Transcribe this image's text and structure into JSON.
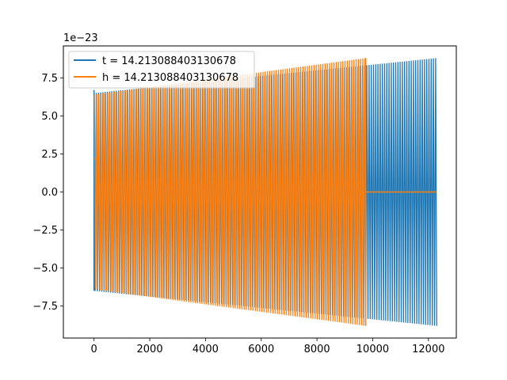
{
  "chart_data": {
    "type": "line",
    "title": "",
    "xlabel": "",
    "ylabel": "",
    "y_offset_label": "1e−23",
    "xlim": [
      -1100,
      13000
    ],
    "ylim": [
      -9.6,
      9.6
    ],
    "xticks": [
      0,
      2000,
      4000,
      6000,
      8000,
      10000,
      12000
    ],
    "yticks": [
      -7.5,
      -5.0,
      -2.5,
      0.0,
      2.5,
      5.0,
      7.5
    ],
    "xtick_labels": [
      "0",
      "2000",
      "4000",
      "6000",
      "8000",
      "10000",
      "12000"
    ],
    "ytick_labels": [
      "−7.5",
      "−5.0",
      "−2.5",
      "0.0",
      "2.5",
      "5.0",
      "7.5"
    ],
    "grid": false,
    "legend_position": "top-left",
    "series": [
      {
        "name": "t = 14.213088403130678",
        "color": "#1f77b4",
        "style": "dense-oscillation",
        "x_range": [
          0,
          12300
        ],
        "start_amplitude": 6.5,
        "end_amplitude": 8.8,
        "first_spike": 6.7
      },
      {
        "name": "h = 14.213088403130678",
        "color": "#ff7f0e",
        "style": "dense-oscillation-then-flat",
        "x_range": [
          0,
          9750
        ],
        "start_amplitude": 6.4,
        "end_amplitude": 8.8,
        "first_value": 2.2,
        "flat_value": 0.0,
        "flat_until": 12300
      }
    ]
  }
}
